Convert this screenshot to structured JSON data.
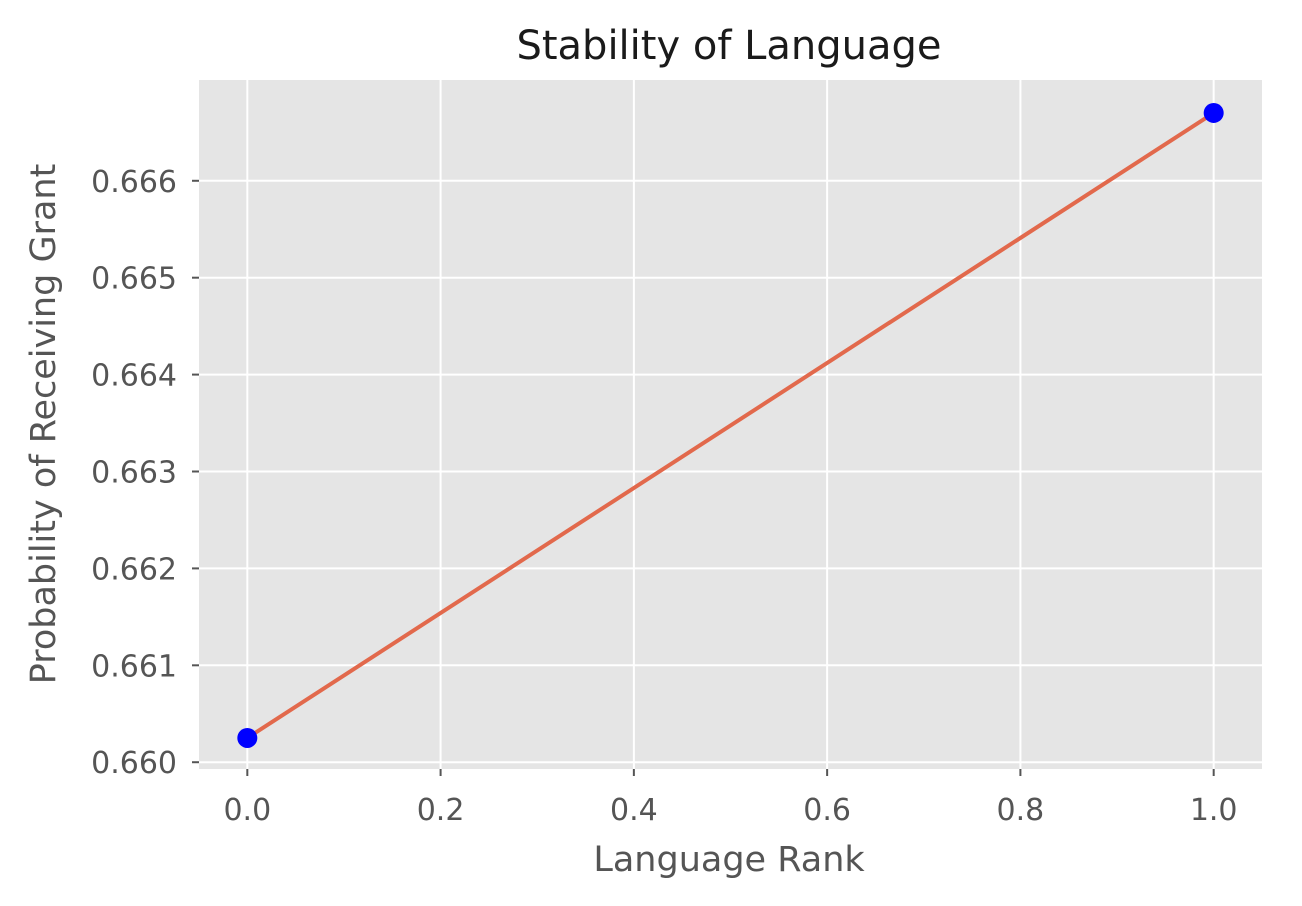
{
  "chart_data": {
    "type": "line",
    "title": "Stability of Language",
    "xlabel": "Language Rank",
    "ylabel": "Probability of Receiving Grant",
    "xlim": [
      -0.05,
      1.05
    ],
    "ylim": [
      0.65993,
      0.66704
    ],
    "x_ticks": [
      0.0,
      0.2,
      0.4,
      0.6,
      0.8,
      1.0
    ],
    "x_tick_labels": [
      "0.0",
      "0.2",
      "0.4",
      "0.6",
      "0.8",
      "1.0"
    ],
    "y_ticks": [
      0.66,
      0.661,
      0.662,
      0.663,
      0.664,
      0.665,
      0.666
    ],
    "y_tick_labels": [
      "0.660",
      "0.661",
      "0.662",
      "0.663",
      "0.664",
      "0.665",
      "0.666"
    ],
    "grid": true,
    "series": [
      {
        "kind": "scatter",
        "color": "#0000ff",
        "x": [
          0.0,
          1.0
        ],
        "y": [
          0.66025,
          0.6667
        ]
      },
      {
        "kind": "line",
        "color": "#e2694c",
        "x": [
          0.0,
          1.0
        ],
        "y": [
          0.66025,
          0.6667
        ]
      }
    ]
  }
}
